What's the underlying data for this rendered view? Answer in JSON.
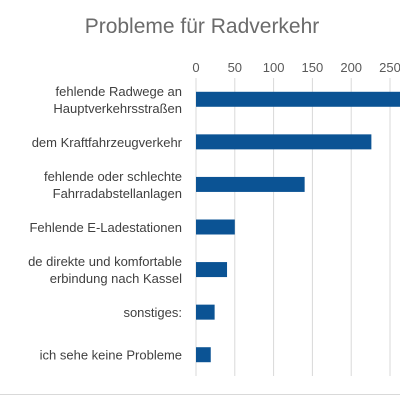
{
  "chart_data": {
    "type": "bar",
    "orientation": "horizontal",
    "title": "Probleme für Radverkehr",
    "xlabel": "",
    "ylabel": "",
    "x_axis_position": "top",
    "xlim": [
      0,
      280
    ],
    "x_ticks": [
      0,
      50,
      100,
      150,
      200,
      250
    ],
    "x_tick_labels": [
      "0",
      "50",
      "100",
      "150",
      "200",
      "250"
    ],
    "grid": true,
    "legend": "none",
    "bar_color": "#0b5394",
    "categories": [
      [
        "fehlende Radwege an",
        "Hauptverkehrsstraßen"
      ],
      [
        "dem Kraftfahrzeugverkehr"
      ],
      [
        "fehlende oder schlechte",
        "Fahrradabstellanlagen"
      ],
      [
        "Fehlende E-Ladestationen"
      ],
      [
        "de direkte und komfortable",
        "erbindung nach Kassel"
      ],
      [
        "sonstiges:"
      ],
      [
        "ich sehe keine Probleme"
      ]
    ],
    "values": [
      275,
      226,
      140,
      50,
      40,
      24,
      19
    ]
  }
}
